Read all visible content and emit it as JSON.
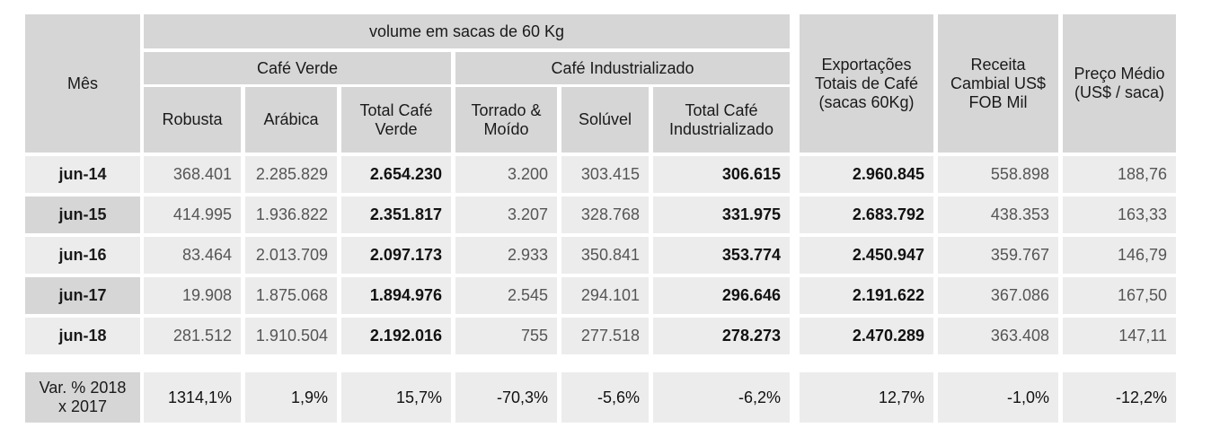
{
  "headers": {
    "mes": "Mês",
    "volume": "volume em sacas de 60 Kg",
    "cafe_verde": "Café Verde",
    "cafe_industrializado": "Café Industrializado",
    "robusta": "Robusta",
    "arabica": "Arábica",
    "total_cafe_verde": "Total Café Verde",
    "torrado": "Torrado & Moído",
    "soluvel": "Solúvel",
    "total_cafe_industrializado": "Total Café Industrializado",
    "exportacoes": "Exportações Totais de Café (sacas 60Kg)",
    "receita": "Receita Cambial US$ FOB Mil",
    "preco": "Preço Médio (US$ / saca)"
  },
  "rows": [
    [
      "jun-14",
      "368.401",
      "2.285.829",
      "2.654.230",
      "3.200",
      "303.415",
      "306.615",
      "2.960.845",
      "558.898",
      "188,76"
    ],
    [
      "jun-15",
      "414.995",
      "1.936.822",
      "2.351.817",
      "3.207",
      "328.768",
      "331.975",
      "2.683.792",
      "438.353",
      "163,33"
    ],
    [
      "jun-16",
      "83.464",
      "2.013.709",
      "2.097.173",
      "2.933",
      "350.841",
      "353.774",
      "2.450.947",
      "359.767",
      "146,79"
    ],
    [
      "jun-17",
      "19.908",
      "1.875.068",
      "1.894.976",
      "2.545",
      "294.101",
      "296.646",
      "2.191.622",
      "367.086",
      "167,50"
    ],
    [
      "jun-18",
      "281.512",
      "1.910.504",
      "2.192.016",
      "755",
      "277.518",
      "278.273",
      "2.470.289",
      "363.408",
      "147,11"
    ]
  ],
  "variation": {
    "label": "Var. % 2018 x 2017",
    "values": [
      "1314,1%",
      "1,9%",
      "15,7%",
      "-70,3%",
      "-5,6%",
      "-6,2%",
      "12,7%",
      "-1,0%",
      "-12,2%"
    ]
  }
}
